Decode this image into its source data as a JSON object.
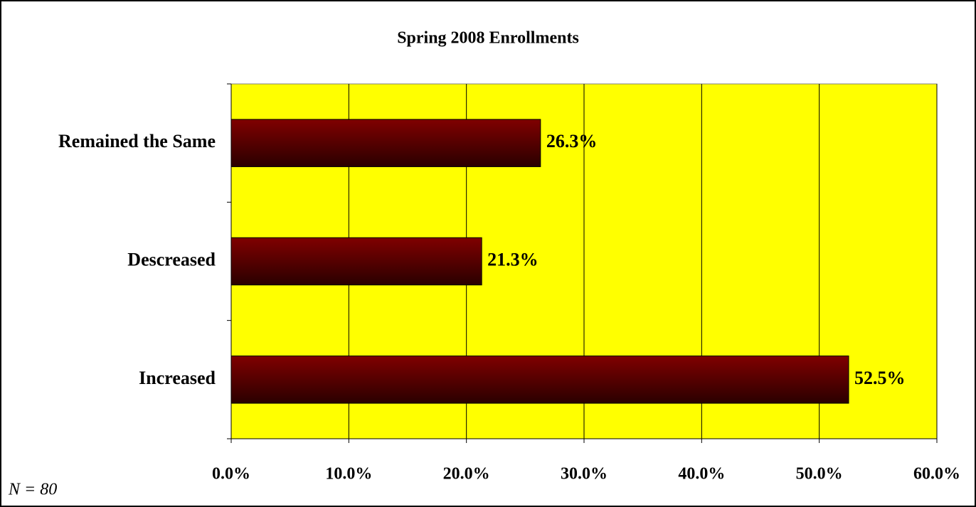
{
  "chart_data": {
    "type": "hbar",
    "title": "Spring 2008 Enrollments",
    "categories": [
      "Remained the Same",
      "Descreased",
      "Increased"
    ],
    "values": [
      26.3,
      21.3,
      52.5
    ],
    "value_labels": [
      "26.3%",
      "21.3%",
      "52.5%"
    ],
    "color": "#800000",
    "plot_background": "#ffff00",
    "xlim": [
      0,
      60
    ],
    "xticks": [
      {
        "value": 0,
        "label": "0.0%"
      },
      {
        "value": 10,
        "label": "10.0%"
      },
      {
        "value": 20,
        "label": "20.0%"
      },
      {
        "value": 30,
        "label": "30.0%"
      },
      {
        "value": 40,
        "label": "40.0%"
      },
      {
        "value": 50,
        "label": "50.0%"
      },
      {
        "value": 60,
        "label": "60.0%"
      }
    ],
    "grid": true,
    "annotation": "N = 80"
  }
}
